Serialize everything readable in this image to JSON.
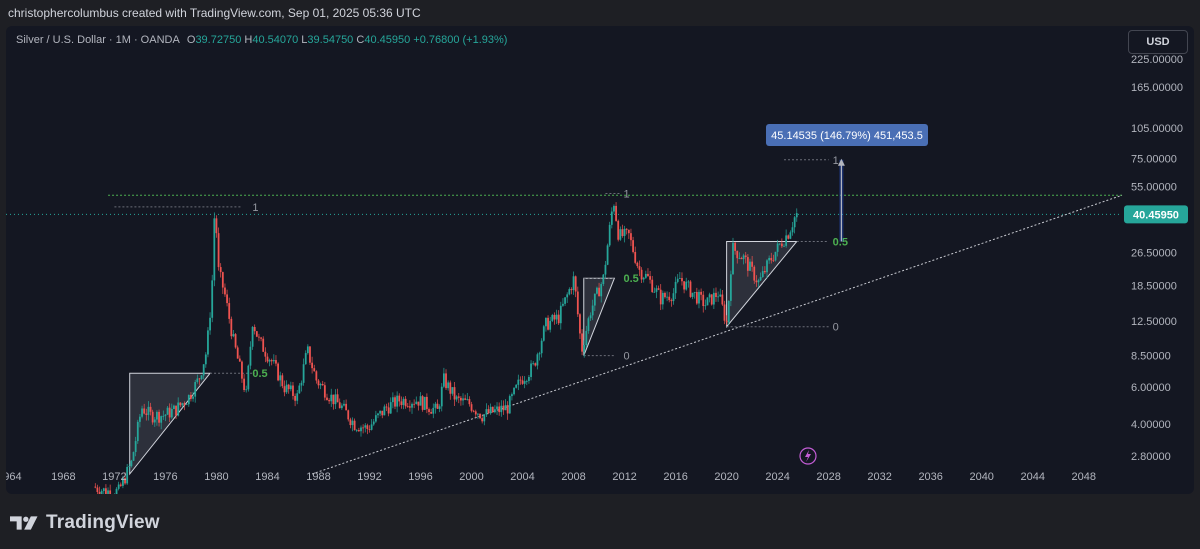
{
  "header": {
    "text": "christophercolumbus created with TradingView.com, Sep 01, 2025 05:36 UTC"
  },
  "legend": {
    "symbol": "Silver / U.S. Dollar · 1M · OANDA",
    "o_label": "O",
    "o_value": "39.72750",
    "h_label": "H",
    "h_value": "40.54070",
    "l_label": "L",
    "l_value": "39.54750",
    "c_label": "C",
    "c_value": "40.45950",
    "change": "+0.76800 (+1.93%)"
  },
  "currency_button": "USD",
  "footer": {
    "brand": "TradingView"
  },
  "chart_data": {
    "type": "candlestick",
    "scale": "log",
    "x_ticks": [
      "964",
      "1968",
      "1972",
      "1976",
      "1980",
      "1984",
      "1988",
      "1992",
      "1996",
      "2000",
      "2004",
      "2008",
      "2012",
      "2016",
      "2020",
      "2024",
      "2028",
      "2032",
      "2036",
      "2040",
      "2044",
      "2048"
    ],
    "y_ticks": [
      "225.00000",
      "165.00000",
      "105.00000",
      "75.00000",
      "55.00000",
      "40.45950",
      "26.50000",
      "18.50000",
      "12.50000",
      "8.50000",
      "6.00000",
      "4.00000",
      "2.80000"
    ],
    "y_tick_values": [
      225,
      165,
      105,
      75,
      55,
      40.4595,
      26.5,
      18.5,
      12.5,
      8.5,
      6,
      4,
      2.8
    ],
    "ylim": [
      2.3,
      260
    ],
    "xlim": [
      1963.5,
      2051
    ],
    "last_price": {
      "value": 40.4595,
      "label": "40.45950"
    },
    "price_path": [
      [
        1970.5,
        2.0
      ],
      [
        1971.5,
        1.9
      ],
      [
        1972.5,
        1.9
      ],
      [
        1973.5,
        2.6
      ],
      [
        1974.3,
        4.8
      ],
      [
        1975,
        4.4
      ],
      [
        1976,
        4.4
      ],
      [
        1977,
        4.7
      ],
      [
        1978,
        5.4
      ],
      [
        1978.8,
        6.6
      ],
      [
        1979.4,
        9.0
      ],
      [
        1979.8,
        17
      ],
      [
        1980.05,
        48
      ],
      [
        1980.3,
        22
      ],
      [
        1980.8,
        17
      ],
      [
        1981.5,
        10
      ],
      [
        1982.5,
        5.5
      ],
      [
        1983,
        12.5
      ],
      [
        1983.5,
        10
      ],
      [
        1984.5,
        8
      ],
      [
        1985.5,
        6
      ],
      [
        1986.5,
        5.4
      ],
      [
        1987.3,
        9.0
      ],
      [
        1988,
        6.5
      ],
      [
        1989,
        5.5
      ],
      [
        1990,
        4.8
      ],
      [
        1991,
        4.0
      ],
      [
        1992,
        3.8
      ],
      [
        1993.5,
        4.8
      ],
      [
        1994.5,
        5.2
      ],
      [
        1996,
        5.2
      ],
      [
        1997.5,
        4.6
      ],
      [
        1998,
        6.5
      ],
      [
        1999,
        5.2
      ],
      [
        2000,
        5.0
      ],
      [
        2001,
        4.4
      ],
      [
        2002,
        4.6
      ],
      [
        2003,
        4.8
      ],
      [
        2004,
        6.5
      ],
      [
        2005,
        7.5
      ],
      [
        2006,
        12
      ],
      [
        2007,
        13
      ],
      [
        2008.2,
        20
      ],
      [
        2008.8,
        9
      ],
      [
        2009.5,
        14
      ],
      [
        2010.5,
        20
      ],
      [
        2011.3,
        48
      ],
      [
        2011.7,
        32
      ],
      [
        2012.5,
        32
      ],
      [
        2013.3,
        22
      ],
      [
        2014,
        20
      ],
      [
        2015,
        16
      ],
      [
        2016,
        17
      ],
      [
        2016.5,
        20
      ],
      [
        2017.5,
        17
      ],
      [
        2018.5,
        15
      ],
      [
        2019.5,
        17
      ],
      [
        2020.2,
        12
      ],
      [
        2020.6,
        28
      ],
      [
        2021.5,
        25
      ],
      [
        2022.7,
        19
      ],
      [
        2023.5,
        24
      ],
      [
        2024.5,
        30
      ],
      [
        2025.0,
        33
      ],
      [
        2025.6,
        40.46
      ]
    ],
    "annotations": {
      "measure_label": "45.14535 (146.79%) 451,453.5",
      "fib_labels": [
        {
          "text": "1",
          "x": 1982.5,
          "y": 44
        },
        {
          "text": "0.5",
          "x": 1982.5,
          "y": 7.0
        },
        {
          "text": "1",
          "x": 2011.6,
          "y": 51
        },
        {
          "text": "0.5",
          "x": 2011.6,
          "y": 20
        },
        {
          "text": "0",
          "x": 2011.6,
          "y": 8.5
        },
        {
          "text": "1",
          "x": 2028.0,
          "y": 74
        },
        {
          "text": "0.5",
          "x": 2028.0,
          "y": 30
        },
        {
          "text": "0",
          "x": 2028.0,
          "y": 11.7
        }
      ],
      "horizontal_level": 50,
      "trendline": {
        "from": [
          1987.5,
          2.3
        ],
        "to": [
          2051,
          50
        ]
      },
      "triangles": [
        [
          [
            1973.2,
            2.3
          ],
          [
            1973.2,
            7
          ],
          [
            1979.5,
            7
          ]
        ],
        [
          [
            2008.8,
            8.5
          ],
          [
            2008.8,
            20
          ],
          [
            2011.2,
            20
          ]
        ],
        [
          [
            2020.0,
            11.7
          ],
          [
            2020.0,
            30
          ],
          [
            2025.5,
            30
          ]
        ]
      ],
      "measure_arrow": {
        "x": 2029.0,
        "from": 30,
        "to": 74
      }
    }
  }
}
